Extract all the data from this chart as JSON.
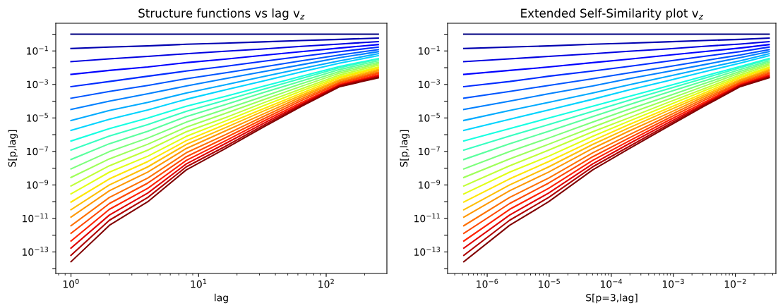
{
  "chart_data": [
    {
      "type": "line",
      "title": "Structure functions vs lag v$_{z}$",
      "xlabel": "lag",
      "ylabel": "S[p,lag]",
      "log": "xy",
      "x": [
        1,
        2,
        4,
        8,
        16,
        32,
        64,
        128,
        256
      ],
      "xlim": [
        0.76,
        299
      ],
      "ylim": [
        5.2e-15,
        4.5
      ],
      "xticks": [
        {
          "value": 1,
          "label": "10$^{0}$"
        },
        {
          "value": 10,
          "label": "10$^{1}$"
        },
        {
          "value": 100,
          "label": "10$^{2}$"
        }
      ],
      "yticks": [
        {
          "value": 1,
          "label": null
        },
        {
          "value": 0.1,
          "label": "10$^{−1}$"
        },
        {
          "value": 0.01,
          "label": null
        },
        {
          "value": 0.001,
          "label": "10$^{−3}$"
        },
        {
          "value": 0.0001,
          "label": null
        },
        {
          "value": 1e-05,
          "label": "10$^{−5}$"
        },
        {
          "value": 1e-06,
          "label": null
        },
        {
          "value": 1e-07,
          "label": "10$^{−7}$"
        },
        {
          "value": 1e-08,
          "label": null
        },
        {
          "value": 1e-09,
          "label": "10$^{−9}$"
        },
        {
          "value": 1e-10,
          "label": null
        },
        {
          "value": 1e-11,
          "label": "10$^{−11}$"
        },
        {
          "value": 1e-12,
          "label": null
        },
        {
          "value": 1e-13,
          "label": "10$^{−13}$"
        },
        {
          "value": 1e-14,
          "label": null
        }
      ],
      "series": [
        {
          "color": "#000080",
          "values": [
            1,
            1,
            1,
            1,
            1,
            1,
            1,
            1,
            1
          ]
        },
        {
          "color": "#0000b0",
          "values": [
            0.14,
            0.17,
            0.2,
            0.25,
            0.29,
            0.35,
            0.42,
            0.49,
            0.59
          ]
        },
        {
          "color": "#0000e0",
          "values": [
            0.023,
            0.034,
            0.047,
            0.068,
            0.095,
            0.13,
            0.19,
            0.26,
            0.36
          ]
        },
        {
          "color": "#0000ff",
          "values": [
            0.004,
            0.0069,
            0.011,
            0.02,
            0.032,
            0.055,
            0.091,
            0.15,
            0.24
          ]
        },
        {
          "color": "#002bff",
          "values": [
            0.00074,
            0.0015,
            0.0031,
            0.0063,
            0.012,
            0.024,
            0.047,
            0.091,
            0.17
          ]
        },
        {
          "color": "#0055ff",
          "values": [
            0.00015,
            0.00038,
            0.00087,
            0.0022,
            0.0049,
            0.011,
            0.026,
            0.058,
            0.12
          ]
        },
        {
          "color": "#0080ff",
          "values": [
            3.2e-05,
            0.0001,
            0.00028,
            0.00081,
            0.0022,
            0.0058,
            0.015,
            0.04,
            0.091
          ]
        },
        {
          "color": "#00aaff",
          "values": [
            7.1e-06,
            2.8e-05,
            8.5e-05,
            0.00031,
            0.00093,
            0.0029,
            0.0089,
            0.026,
            0.068
          ]
        },
        {
          "color": "#00d4ff",
          "values": [
            1.8e-06,
            8.3e-06,
            3e-05,
            0.00013,
            0.00046,
            0.0016,
            0.0056,
            0.019,
            0.052
          ]
        },
        {
          "color": "#15ffe2",
          "values": [
            4.2e-07,
            2.3e-06,
            9.8e-06,
            5e-05,
            0.00019,
            0.00078,
            0.0031,
            0.012,
            0.035
          ]
        },
        {
          "color": "#37ffc0",
          "values": [
            1.2e-07,
            8.3e-07,
            4e-06,
            2.5e-05,
            0.00011,
            0.00051,
            0.0023,
            0.01,
            0.032
          ]
        },
        {
          "color": "#59ff9e",
          "values": [
            3.3e-08,
            2.9e-07,
            1.6e-06,
            1.2e-05,
            6e-05,
            0.00032,
            0.0016,
            0.0078,
            0.026
          ]
        },
        {
          "color": "#7bff7b",
          "values": [
            9.1e-09,
            9.8e-08,
            6.3e-07,
            5.6e-06,
            3.2e-05,
            0.00019,
            0.0011,
            0.006,
            0.021
          ]
        },
        {
          "color": "#9eff59",
          "values": [
            2.8e-09,
            3.6e-08,
            2.7e-07,
            2.8e-06,
            1.8e-05,
            0.00012,
            0.00078,
            0.0048,
            0.017
          ]
        },
        {
          "color": "#c0ff37",
          "values": [
            8.7e-10,
            1.4e-08,
            1.2e-07,
            1.5e-06,
            1e-05,
            7.8e-05,
            0.00055,
            0.0037,
            0.014
          ]
        },
        {
          "color": "#e2ff15",
          "values": [
            2.9e-10,
            5.8e-09,
            5.2e-08,
            7.9e-07,
            6.3e-06,
            5.2e-05,
            0.00041,
            0.003,
            0.011
          ]
        },
        {
          "color": "#ffe600",
          "values": [
            9.5e-11,
            2.3e-09,
            2.5e-08,
            4.4e-07,
            3.9e-06,
            3.5e-05,
            0.0003,
            0.0025,
            0.0095
          ]
        },
        {
          "color": "#ffbe00",
          "values": [
            3.3e-11,
            1e-09,
            1.2e-08,
            2.6e-07,
            2.5e-06,
            2.5e-05,
            0.00023,
            0.002,
            0.0079
          ]
        },
        {
          "color": "#ff9700",
          "values": [
            1.2e-11,
            4.5e-10,
            5.9e-09,
            1.5e-07,
            1.6e-06,
            1.7e-05,
            0.00018,
            0.0017,
            0.0066
          ]
        },
        {
          "color": "#ff7000",
          "values": [
            3.7e-12,
            1.8e-10,
            2.6e-09,
            8.3e-08,
            9.5e-07,
            1.2e-05,
            0.00014,
            0.0014,
            0.0055
          ]
        },
        {
          "color": "#ff4800",
          "values": [
            1.3e-12,
            7.8e-11,
            1.3e-09,
            4.8e-08,
            6.2e-07,
            8.5e-06,
            0.00011,
            0.0012,
            0.0046
          ]
        },
        {
          "color": "#ff2100",
          "values": [
            4.5e-13,
            3.5e-11,
            6.3e-10,
            2.9e-08,
            4.1e-07,
            6.2e-06,
            8.3e-05,
            0.001,
            0.0038
          ]
        },
        {
          "color": "#e00000",
          "values": [
            1.7e-13,
            1.6e-11,
            3.3e-10,
            1.8e-08,
            2.8e-07,
            4.6e-06,
            6.8e-05,
            0.00091,
            0.0032
          ]
        },
        {
          "color": "#b00000",
          "values": [
            6.3e-14,
            7.8e-12,
            1.8e-10,
            1.2e-08,
            1.9e-07,
            3.5e-06,
            5.8e-05,
            0.00083,
            0.0028
          ]
        },
        {
          "color": "#800000",
          "values": [
            2.6e-14,
            3.9e-12,
            1e-10,
            7.9e-09,
            1.4e-07,
            2.8e-06,
            4.9e-05,
            0.00074,
            0.0025
          ]
        }
      ]
    },
    {
      "type": "line",
      "title": "Extended Self-Similarity plot v$_{z}$",
      "xlabel": "S[p=3,lag]",
      "ylabel": "S[p,lag]",
      "log": "xy",
      "x": [
        4.2e-07,
        2.3e-06,
        9.8e-06,
        5e-05,
        0.00019,
        0.00078,
        0.0031,
        0.012,
        0.035
      ],
      "xlim": [
        2.3e-07,
        0.045
      ],
      "ylim": [
        5.2e-15,
        4.5
      ],
      "xticks": [
        {
          "value": 1e-06,
          "label": "10$^{−6}$"
        },
        {
          "value": 1e-05,
          "label": "10$^{−5}$"
        },
        {
          "value": 0.0001,
          "label": "10$^{−4}$"
        },
        {
          "value": 0.001,
          "label": "10$^{−3}$"
        },
        {
          "value": 0.01,
          "label": "10$^{−2}$"
        }
      ],
      "yticks": [
        {
          "value": 1,
          "label": null
        },
        {
          "value": 0.1,
          "label": "10$^{−1}$"
        },
        {
          "value": 0.01,
          "label": null
        },
        {
          "value": 0.001,
          "label": "10$^{−3}$"
        },
        {
          "value": 0.0001,
          "label": null
        },
        {
          "value": 1e-05,
          "label": "10$^{−5}$"
        },
        {
          "value": 1e-06,
          "label": null
        },
        {
          "value": 1e-07,
          "label": "10$^{−7}$"
        },
        {
          "value": 1e-08,
          "label": null
        },
        {
          "value": 1e-09,
          "label": "10$^{−9}$"
        },
        {
          "value": 1e-10,
          "label": null
        },
        {
          "value": 1e-11,
          "label": "10$^{−11}$"
        },
        {
          "value": 1e-12,
          "label": null
        },
        {
          "value": 1e-13,
          "label": "10$^{−13}$"
        },
        {
          "value": 1e-14,
          "label": null
        }
      ],
      "series": [
        {
          "color": "#000080",
          "values": [
            1,
            1,
            1,
            1,
            1,
            1,
            1,
            1,
            1
          ]
        },
        {
          "color": "#0000b0",
          "values": [
            0.14,
            0.17,
            0.2,
            0.25,
            0.29,
            0.35,
            0.42,
            0.49,
            0.59
          ]
        },
        {
          "color": "#0000e0",
          "values": [
            0.023,
            0.034,
            0.047,
            0.068,
            0.095,
            0.13,
            0.19,
            0.26,
            0.36
          ]
        },
        {
          "color": "#0000ff",
          "values": [
            0.004,
            0.0069,
            0.011,
            0.02,
            0.032,
            0.055,
            0.091,
            0.15,
            0.24
          ]
        },
        {
          "color": "#002bff",
          "values": [
            0.00074,
            0.0015,
            0.0031,
            0.0063,
            0.012,
            0.024,
            0.047,
            0.091,
            0.17
          ]
        },
        {
          "color": "#0055ff",
          "values": [
            0.00015,
            0.00038,
            0.00087,
            0.0022,
            0.0049,
            0.011,
            0.026,
            0.058,
            0.12
          ]
        },
        {
          "color": "#0080ff",
          "values": [
            3.2e-05,
            0.0001,
            0.00028,
            0.00081,
            0.0022,
            0.0058,
            0.015,
            0.04,
            0.091
          ]
        },
        {
          "color": "#00aaff",
          "values": [
            7.1e-06,
            2.8e-05,
            8.5e-05,
            0.00031,
            0.00093,
            0.0029,
            0.0089,
            0.026,
            0.068
          ]
        },
        {
          "color": "#00d4ff",
          "values": [
            1.8e-06,
            8.3e-06,
            3e-05,
            0.00013,
            0.00046,
            0.0016,
            0.0056,
            0.019,
            0.052
          ]
        },
        {
          "color": "#15ffe2",
          "values": [
            4.2e-07,
            2.3e-06,
            9.8e-06,
            5e-05,
            0.00019,
            0.00078,
            0.0031,
            0.012,
            0.035
          ]
        },
        {
          "color": "#37ffc0",
          "values": [
            1.2e-07,
            8.3e-07,
            4e-06,
            2.5e-05,
            0.00011,
            0.00051,
            0.0023,
            0.01,
            0.032
          ]
        },
        {
          "color": "#59ff9e",
          "values": [
            3.3e-08,
            2.9e-07,
            1.6e-06,
            1.2e-05,
            6e-05,
            0.00032,
            0.0016,
            0.0078,
            0.026
          ]
        },
        {
          "color": "#7bff7b",
          "values": [
            9.1e-09,
            9.8e-08,
            6.3e-07,
            5.6e-06,
            3.2e-05,
            0.00019,
            0.0011,
            0.006,
            0.021
          ]
        },
        {
          "color": "#9eff59",
          "values": [
            2.8e-09,
            3.6e-08,
            2.7e-07,
            2.8e-06,
            1.8e-05,
            0.00012,
            0.00078,
            0.0048,
            0.017
          ]
        },
        {
          "color": "#c0ff37",
          "values": [
            8.7e-10,
            1.4e-08,
            1.2e-07,
            1.5e-06,
            1e-05,
            7.8e-05,
            0.00055,
            0.0037,
            0.014
          ]
        },
        {
          "color": "#e2ff15",
          "values": [
            2.9e-10,
            5.8e-09,
            5.2e-08,
            7.9e-07,
            6.3e-06,
            5.2e-05,
            0.00041,
            0.003,
            0.011
          ]
        },
        {
          "color": "#ffe600",
          "values": [
            9.5e-11,
            2.3e-09,
            2.5e-08,
            4.4e-07,
            3.9e-06,
            3.5e-05,
            0.0003,
            0.0025,
            0.0095
          ]
        },
        {
          "color": "#ffbe00",
          "values": [
            3.3e-11,
            1e-09,
            1.2e-08,
            2.6e-07,
            2.5e-06,
            2.5e-05,
            0.00023,
            0.002,
            0.0079
          ]
        },
        {
          "color": "#ff9700",
          "values": [
            1.2e-11,
            4.5e-10,
            5.9e-09,
            1.5e-07,
            1.6e-06,
            1.7e-05,
            0.00018,
            0.0017,
            0.0066
          ]
        },
        {
          "color": "#ff7000",
          "values": [
            3.7e-12,
            1.8e-10,
            2.6e-09,
            8.3e-08,
            9.5e-07,
            1.2e-05,
            0.00014,
            0.0014,
            0.0055
          ]
        },
        {
          "color": "#ff4800",
          "values": [
            1.3e-12,
            7.8e-11,
            1.3e-09,
            4.8e-08,
            6.2e-07,
            8.5e-06,
            0.00011,
            0.0012,
            0.0046
          ]
        },
        {
          "color": "#ff2100",
          "values": [
            4.5e-13,
            3.5e-11,
            6.3e-10,
            2.9e-08,
            4.1e-07,
            6.2e-06,
            8.3e-05,
            0.001,
            0.0038
          ]
        },
        {
          "color": "#e00000",
          "values": [
            1.7e-13,
            1.6e-11,
            3.3e-10,
            1.8e-08,
            2.8e-07,
            4.6e-06,
            6.8e-05,
            0.00091,
            0.0032
          ]
        },
        {
          "color": "#b00000",
          "values": [
            6.3e-14,
            7.8e-12,
            1.8e-10,
            1.2e-08,
            1.9e-07,
            3.5e-06,
            5.8e-05,
            0.00083,
            0.0028
          ]
        },
        {
          "color": "#800000",
          "values": [
            2.6e-14,
            3.9e-12,
            1e-10,
            7.9e-09,
            1.4e-07,
            2.8e-06,
            4.9e-05,
            0.00074,
            0.0025
          ]
        }
      ]
    }
  ]
}
